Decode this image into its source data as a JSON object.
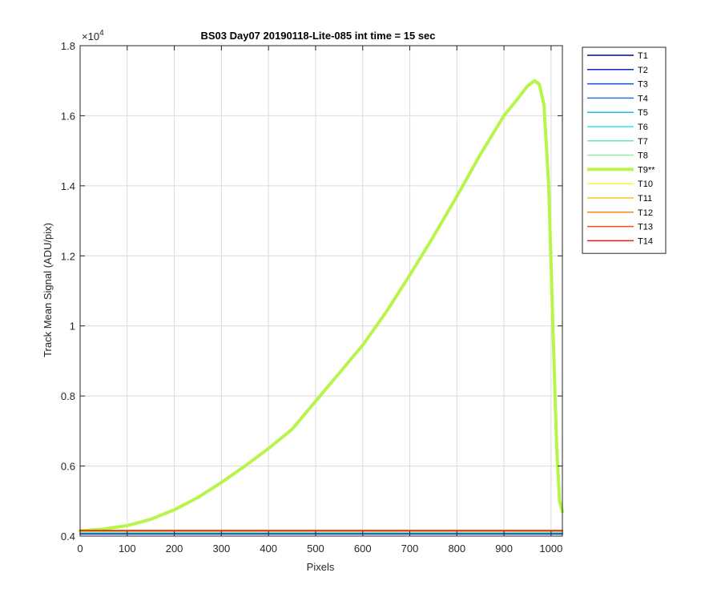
{
  "chart_data": {
    "type": "line",
    "title": "BS03 Day07 20190118-Lite-085 int time = 15 sec",
    "xlabel": "Pixels",
    "ylabel": "Track Mean Signal (ADU/pix)",
    "y_exponent_label": "×10",
    "y_exponent_power": "4",
    "xlim": [
      0,
      1024
    ],
    "ylim": [
      4000,
      18000
    ],
    "x_ticks": [
      0,
      100,
      200,
      300,
      400,
      500,
      600,
      700,
      800,
      900,
      1000
    ],
    "x_tick_labels": [
      "0",
      "100",
      "200",
      "300",
      "400",
      "500",
      "600",
      "700",
      "800",
      "900",
      "1000"
    ],
    "y_ticks": [
      4000,
      6000,
      8000,
      10000,
      12000,
      14000,
      16000,
      18000
    ],
    "y_tick_labels": [
      "0.4",
      "0.6",
      "0.8",
      "1",
      "1.2",
      "1.4",
      "1.6",
      "1.8"
    ],
    "grid": true,
    "legend_position": "outside-right",
    "series": [
      {
        "name": "T1",
        "color": "#000d80",
        "x": [
          0,
          1024
        ],
        "y": [
          4060,
          4060
        ]
      },
      {
        "name": "T2",
        "color": "#0a2ac8",
        "x": [
          0,
          1024
        ],
        "y": [
          4070,
          4070
        ]
      },
      {
        "name": "T3",
        "color": "#1550e0",
        "x": [
          0,
          1024
        ],
        "y": [
          4080,
          4080
        ]
      },
      {
        "name": "T4",
        "color": "#1f7ae8",
        "x": [
          0,
          1024
        ],
        "y": [
          4090,
          4090
        ]
      },
      {
        "name": "T5",
        "color": "#22b8ea",
        "x": [
          0,
          1024
        ],
        "y": [
          4100,
          4100
        ]
      },
      {
        "name": "T6",
        "color": "#2ee8e8",
        "x": [
          0,
          1024
        ],
        "y": [
          4110,
          4110
        ]
      },
      {
        "name": "T7",
        "color": "#5ee8c0",
        "x": [
          0,
          1024
        ],
        "y": [
          4115,
          4115
        ]
      },
      {
        "name": "T8",
        "color": "#8ef09a",
        "x": [
          0,
          1024
        ],
        "y": [
          4120,
          4120
        ]
      },
      {
        "name": "T9**",
        "color": "#b8f54a",
        "bold": true,
        "x": [
          0,
          50,
          100,
          150,
          200,
          250,
          300,
          350,
          400,
          450,
          500,
          550,
          600,
          650,
          700,
          750,
          800,
          850,
          900,
          930,
          950,
          965,
          975,
          985,
          995,
          1005,
          1012,
          1018,
          1024
        ],
        "y": [
          4150,
          4200,
          4300,
          4480,
          4750,
          5100,
          5530,
          6000,
          6500,
          7050,
          7850,
          8650,
          9450,
          10400,
          11450,
          12550,
          13700,
          14900,
          16000,
          16500,
          16850,
          17000,
          16900,
          16300,
          14000,
          9500,
          6500,
          5000,
          4700
        ]
      },
      {
        "name": "T10",
        "color": "#f5f53a",
        "x": [
          0,
          1024
        ],
        "y": [
          4140,
          4140
        ]
      },
      {
        "name": "T11",
        "color": "#f5c520",
        "x": [
          0,
          1024
        ],
        "y": [
          4150,
          4150
        ]
      },
      {
        "name": "T12",
        "color": "#f58a10",
        "x": [
          0,
          1024
        ],
        "y": [
          4145,
          4145
        ]
      },
      {
        "name": "T13",
        "color": "#f55010",
        "x": [
          0,
          1024
        ],
        "y": [
          4155,
          4155
        ]
      },
      {
        "name": "T14",
        "color": "#f01a0a",
        "x": [
          0,
          1024
        ],
        "y": [
          4160,
          4160
        ]
      }
    ]
  }
}
